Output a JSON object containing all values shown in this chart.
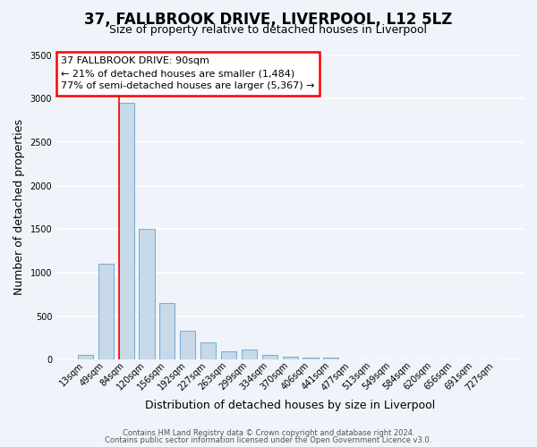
{
  "title_line1": "37, FALLBROOK DRIVE, LIVERPOOL, L12 5LZ",
  "title_line2": "Size of property relative to detached houses in Liverpool",
  "xlabel": "Distribution of detached houses by size in Liverpool",
  "ylabel": "Number of detached properties",
  "categories": [
    "13sqm",
    "49sqm",
    "84sqm",
    "120sqm",
    "156sqm",
    "192sqm",
    "227sqm",
    "263sqm",
    "299sqm",
    "334sqm",
    "370sqm",
    "406sqm",
    "441sqm",
    "477sqm",
    "513sqm",
    "549sqm",
    "584sqm",
    "620sqm",
    "656sqm",
    "691sqm",
    "727sqm"
  ],
  "values": [
    50,
    1100,
    2950,
    1500,
    650,
    330,
    200,
    100,
    120,
    50,
    30,
    20,
    25,
    0,
    0,
    0,
    0,
    0,
    0,
    0,
    0
  ],
  "bar_color": "#c8daea",
  "bar_edge_color": "#7bafd4",
  "property_line_bin": 2,
  "annotation_line1": "37 FALLBROOK DRIVE: 90sqm",
  "annotation_line2": "← 21% of detached houses are smaller (1,484)",
  "annotation_line3": "77% of semi-detached houses are larger (5,367) →",
  "ylim_max": 3500,
  "yticks": [
    0,
    500,
    1000,
    1500,
    2000,
    2500,
    3000,
    3500
  ],
  "footer_line1": "Contains HM Land Registry data © Crown copyright and database right 2024.",
  "footer_line2": "Contains public sector information licensed under the Open Government Licence v3.0.",
  "bg_color": "#f0f4fa",
  "plot_bg_color": "#f0f4fa",
  "grid_color": "#ffffff",
  "title_fontsize": 12,
  "subtitle_fontsize": 9,
  "axis_label_fontsize": 9,
  "tick_fontsize": 7,
  "annotation_fontsize": 8,
  "footer_fontsize": 6
}
